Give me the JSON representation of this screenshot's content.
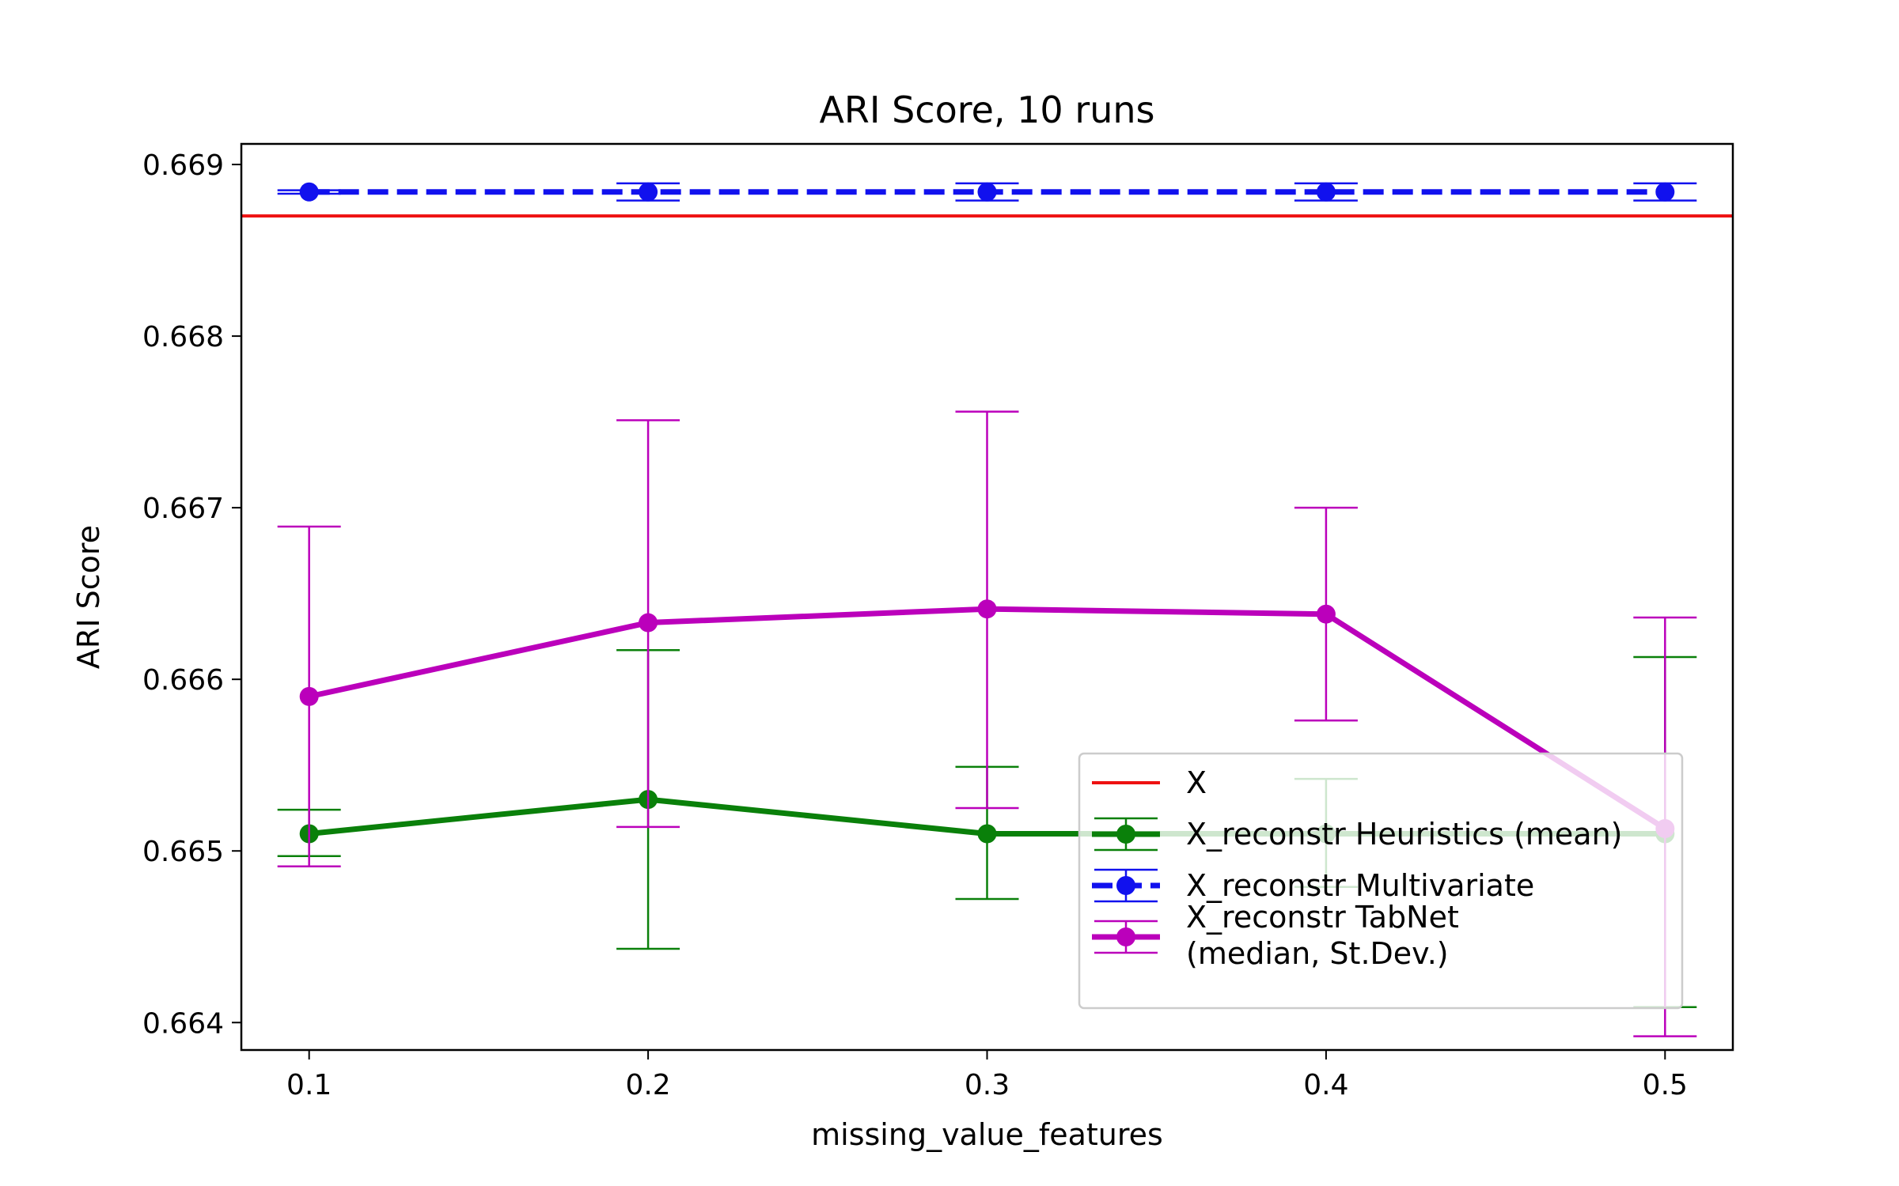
{
  "chart_data": {
    "type": "line",
    "title": "ARI Score, 10 runs",
    "xlabel": "missing_value_features",
    "ylabel": "ARI Score",
    "x": [
      0.1,
      0.2,
      0.3,
      0.4,
      0.5
    ],
    "x_tick_labels": [
      "0.1",
      "0.2",
      "0.3",
      "0.4",
      "0.5"
    ],
    "xlim": [
      0.08,
      0.52
    ],
    "ylim": [
      0.66384,
      0.66912
    ],
    "y_ticks": [
      0.664,
      0.665,
      0.666,
      0.667,
      0.668,
      0.669
    ],
    "y_tick_labels": [
      "0.664",
      "0.665",
      "0.666",
      "0.667",
      "0.668",
      "0.669"
    ],
    "grid": false,
    "legend_position": "lower-right",
    "hlines": [
      {
        "name": "X",
        "y": 0.6687,
        "color": "#ee1111"
      }
    ],
    "series": [
      {
        "name": "X_reconstr Heuristics (mean)",
        "color": "#0a800a",
        "line_style": "solid",
        "values": [
          0.6651,
          0.6653,
          0.6651,
          0.6651,
          0.6651
        ],
        "err_low": [
          0.66497,
          0.66443,
          0.66472,
          0.66479,
          0.66409
        ],
        "err_high": [
          0.66524,
          0.66617,
          0.66549,
          0.66542,
          0.66613
        ]
      },
      {
        "name": "X_reconstr Multivariate",
        "color": "#1111ee",
        "line_style": "dashed",
        "values": [
          0.66884,
          0.66884,
          0.66884,
          0.66884,
          0.66884
        ],
        "err_low": [
          0.66883,
          0.66879,
          0.66879,
          0.66879,
          0.66879
        ],
        "err_high": [
          0.66885,
          0.66889,
          0.66889,
          0.66889,
          0.66889
        ]
      },
      {
        "name": "X_reconstr TabNet\n(median, St.Dev.)",
        "color": "#bb00bb",
        "line_style": "solid",
        "values": [
          0.6659,
          0.66633,
          0.66641,
          0.66638,
          0.66513
        ],
        "err_low": [
          0.66491,
          0.66514,
          0.66525,
          0.66576,
          0.66392
        ],
        "err_high": [
          0.66689,
          0.66751,
          0.66756,
          0.667,
          0.66636
        ]
      }
    ]
  }
}
